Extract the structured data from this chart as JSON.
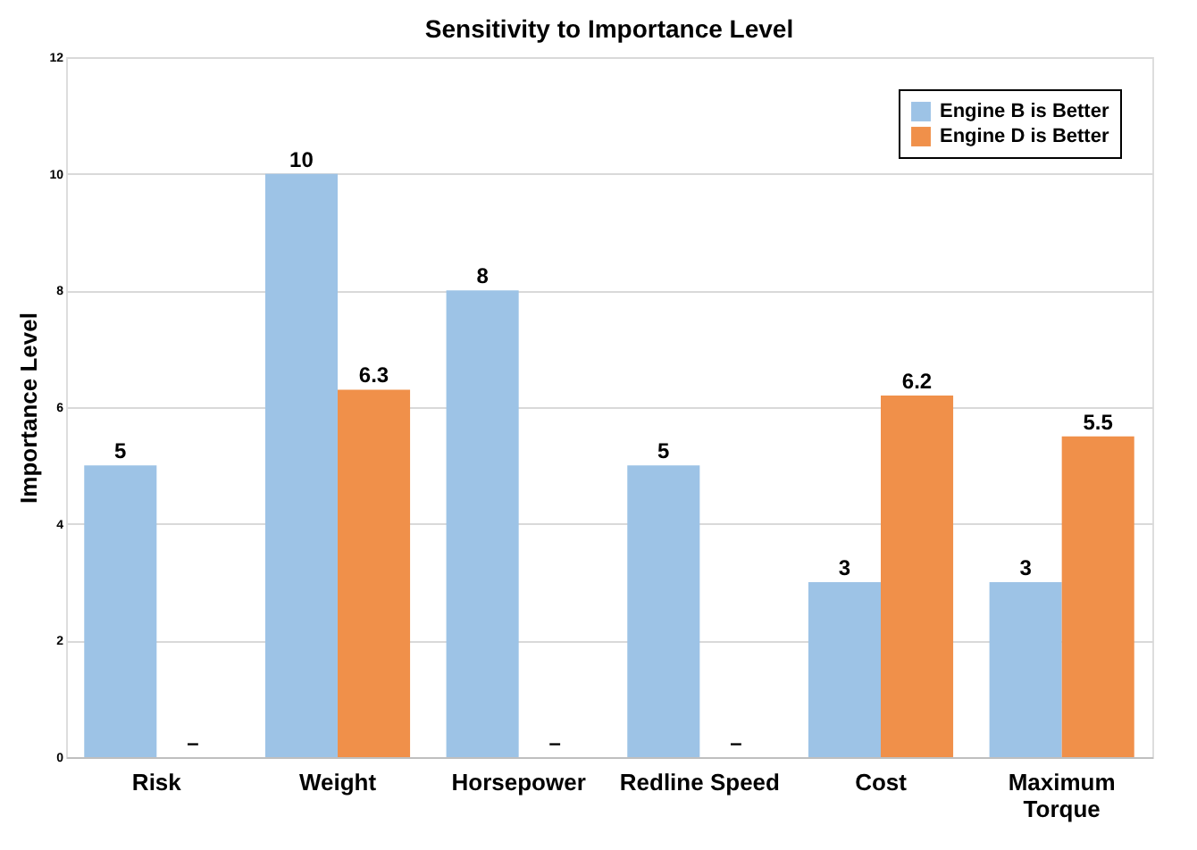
{
  "chart_data": {
    "type": "bar",
    "title": "Sensitivity to Importance Level",
    "ylabel": "Importance Level",
    "categories": [
      "Risk",
      "Weight",
      "Horsepower",
      "Redline Speed",
      "Cost",
      "Maximum Torque"
    ],
    "series": [
      {
        "name": "Engine B is Better",
        "color": "#9dc3e6",
        "values": [
          5,
          10,
          8,
          5,
          3,
          3
        ],
        "value_labels": [
          "5",
          "10",
          "8",
          "5",
          "3",
          "3"
        ]
      },
      {
        "name": "Engine D is Better",
        "color": "#f0904a",
        "values": [
          null,
          6.3,
          null,
          null,
          6.2,
          5.5
        ],
        "value_labels": [
          "–",
          "6.3",
          "–",
          "–",
          "6.2",
          "5.5"
        ]
      }
    ],
    "ylim": [
      0,
      12
    ],
    "yticks": [
      0,
      2,
      4,
      6,
      8,
      10,
      12
    ],
    "grid": "y",
    "legend": "top right"
  }
}
